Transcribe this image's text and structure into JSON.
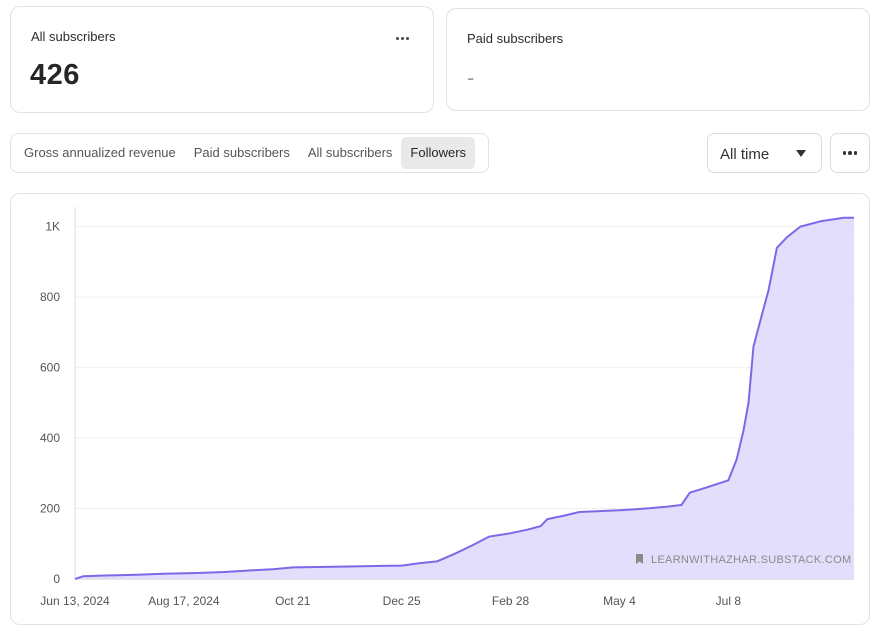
{
  "cards": {
    "all_subscribers": {
      "label": "All subscribers",
      "value": "426"
    },
    "paid_subscribers": {
      "label": "Paid subscribers",
      "value": "-"
    }
  },
  "tabs": [
    {
      "label": "Gross annualized revenue",
      "active": false
    },
    {
      "label": "Paid subscribers",
      "active": false
    },
    {
      "label": "All subscribers",
      "active": false
    },
    {
      "label": "Followers",
      "active": true
    }
  ],
  "range_select": {
    "value": "All time"
  },
  "icons": {
    "card_menu": "more-horizontal-icon",
    "toolbar_menu": "more-horizontal-icon",
    "caret": "caret-down-icon",
    "bookmark": "bookmark-icon"
  },
  "colors": {
    "line": "#7b69e8",
    "fill": "#ddd8fb",
    "grid": "#efefef"
  },
  "chart_data": {
    "type": "area",
    "title": "",
    "xlabel": "",
    "ylabel": "",
    "watermark": "LEARNWITHAZHAR.SUBSTACK.COM",
    "grid": true,
    "y_ticks": [
      0,
      200,
      400,
      600,
      800,
      1000
    ],
    "y_tick_labels": [
      "0",
      "200",
      "400",
      "600",
      "800",
      "1K"
    ],
    "x_ticks": [
      {
        "date": "2024-06-13",
        "label": "Jun 13, 2024"
      },
      {
        "date": "2024-08-17",
        "label": "Aug 17, 2024"
      },
      {
        "date": "2024-10-21",
        "label": "Oct 21"
      },
      {
        "date": "2024-12-25",
        "label": "Dec 25"
      },
      {
        "date": "2025-02-28",
        "label": "Feb 28"
      },
      {
        "date": "2025-05-04",
        "label": "May 4"
      },
      {
        "date": "2025-07-08",
        "label": "Jul 8"
      }
    ],
    "xlim": [
      "2024-06-13",
      "2025-09-21"
    ],
    "ylim": [
      0,
      1050
    ],
    "series": [
      {
        "points": [
          [
            "2024-06-13",
            0
          ],
          [
            "2024-06-18",
            8
          ],
          [
            "2024-07-01",
            10
          ],
          [
            "2024-07-20",
            12
          ],
          [
            "2024-08-05",
            15
          ],
          [
            "2024-08-25",
            17
          ],
          [
            "2024-09-10",
            20
          ],
          [
            "2024-09-25",
            24
          ],
          [
            "2024-10-10",
            28
          ],
          [
            "2024-10-21",
            33
          ],
          [
            "2024-11-15",
            35
          ],
          [
            "2024-12-10",
            37
          ],
          [
            "2024-12-25",
            38
          ],
          [
            "2025-01-05",
            45
          ],
          [
            "2025-01-15",
            50
          ],
          [
            "2025-01-25",
            70
          ],
          [
            "2025-02-05",
            95
          ],
          [
            "2025-02-15",
            120
          ],
          [
            "2025-02-28",
            130
          ],
          [
            "2025-03-10",
            140
          ],
          [
            "2025-03-18",
            150
          ],
          [
            "2025-03-22",
            170
          ],
          [
            "2025-04-01",
            180
          ],
          [
            "2025-04-10",
            190
          ],
          [
            "2025-05-04",
            195
          ],
          [
            "2025-05-20",
            200
          ],
          [
            "2025-06-01",
            205
          ],
          [
            "2025-06-10",
            210
          ],
          [
            "2025-06-15",
            245
          ],
          [
            "2025-06-25",
            260
          ],
          [
            "2025-07-08",
            280
          ],
          [
            "2025-07-13",
            340
          ],
          [
            "2025-07-17",
            420
          ],
          [
            "2025-07-20",
            500
          ],
          [
            "2025-07-23",
            660
          ],
          [
            "2025-07-28",
            750
          ],
          [
            "2025-08-01",
            820
          ],
          [
            "2025-08-06",
            940
          ],
          [
            "2025-08-12",
            970
          ],
          [
            "2025-08-20",
            1000
          ],
          [
            "2025-09-01",
            1015
          ],
          [
            "2025-09-15",
            1025
          ],
          [
            "2025-09-21",
            1025
          ]
        ]
      }
    ]
  }
}
